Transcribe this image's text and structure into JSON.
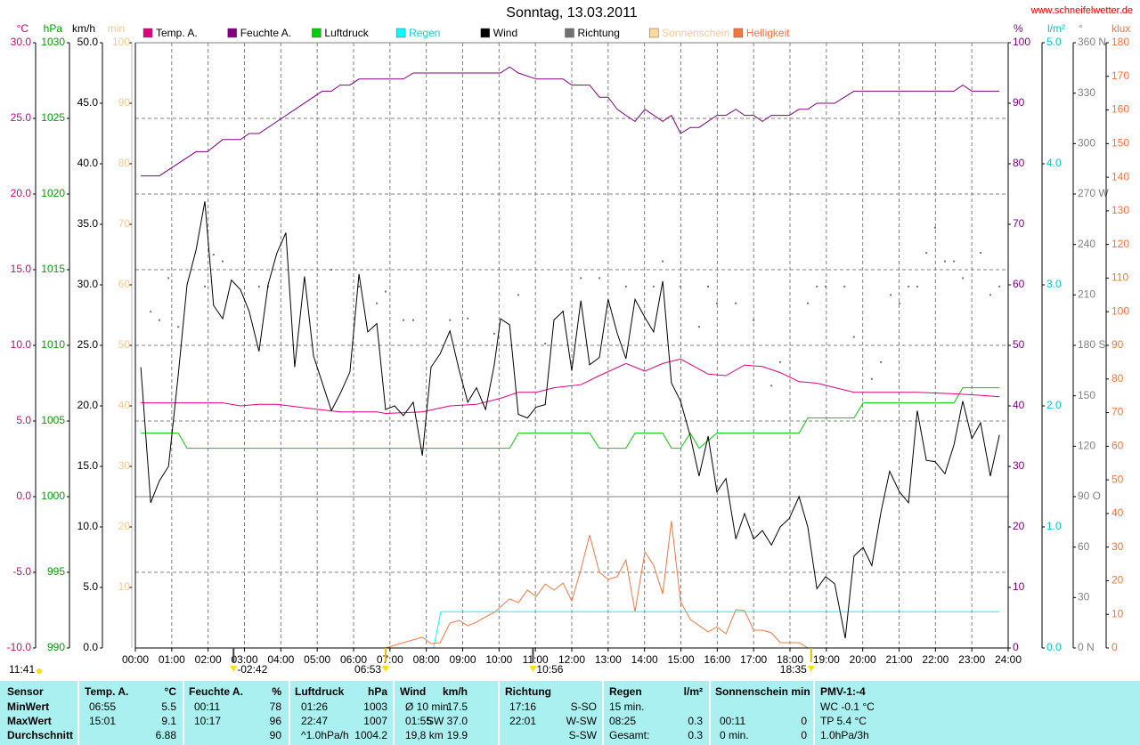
{
  "chart_data": {
    "type": "line",
    "title": "Sonntag, 13.03.2011",
    "source": "www.schneifelwetter.de",
    "xlim": [
      0,
      24
    ],
    "xticks": [
      {
        "value": 0,
        "label": "00:00"
      },
      {
        "value": 1,
        "label": "01:00"
      },
      {
        "value": 2,
        "label": "02:00"
      },
      {
        "value": 3,
        "label": "03:00"
      },
      {
        "value": 4,
        "label": "04:00"
      },
      {
        "value": 5,
        "label": "05:00"
      },
      {
        "value": 6,
        "label": "06:00"
      },
      {
        "value": 7,
        "label": "07:00"
      },
      {
        "value": 8,
        "label": "08:00"
      },
      {
        "value": 9,
        "label": "09:00"
      },
      {
        "value": 10,
        "label": "10:00"
      },
      {
        "value": 11,
        "label": "11:00"
      },
      {
        "value": 12,
        "label": "12:00"
      },
      {
        "value": 13,
        "label": "13:00"
      },
      {
        "value": 14,
        "label": "14:00"
      },
      {
        "value": 15,
        "label": "15:00"
      },
      {
        "value": 16,
        "label": "16:00"
      },
      {
        "value": 17,
        "label": "17:00"
      },
      {
        "value": 18,
        "label": "18:00"
      },
      {
        "value": 19,
        "label": "19:00"
      },
      {
        "value": 20,
        "label": "20:00"
      },
      {
        "value": 21,
        "label": "21:00"
      },
      {
        "value": 22,
        "label": "22:00"
      },
      {
        "value": 23,
        "label": "23:00"
      },
      {
        "value": 24,
        "label": "24:00"
      }
    ],
    "grid": true,
    "axes": [
      {
        "unit": "°C",
        "side": "left",
        "color": "#d4007a",
        "lim": [
          -10,
          30
        ],
        "ticks": [
          {
            "value": -10,
            "label": "-10.0"
          },
          {
            "value": -5,
            "label": "-5.0"
          },
          {
            "value": 0,
            "label": "0.0"
          },
          {
            "value": 5,
            "label": "5.0"
          },
          {
            "value": 10,
            "label": "10.0"
          },
          {
            "value": 15,
            "label": "15.0"
          },
          {
            "value": 20,
            "label": "20.0"
          },
          {
            "value": 25,
            "label": "25.0"
          },
          {
            "value": 30,
            "label": "30.0"
          }
        ]
      },
      {
        "unit": "hPa",
        "side": "left",
        "color": "#00a000",
        "lim": [
          990,
          1030
        ],
        "ticks": [
          990,
          995,
          1000,
          1005,
          1010,
          1015,
          1020,
          1025,
          1030
        ]
      },
      {
        "unit": "km/h",
        "side": "left",
        "color": "#000000",
        "lim": [
          0,
          50
        ],
        "ticks": [
          {
            "value": 0,
            "label": "0.0"
          },
          {
            "value": 5,
            "label": "5.0"
          },
          {
            "value": 10,
            "label": "10.0"
          },
          {
            "value": 15,
            "label": "15.0"
          },
          {
            "value": 20,
            "label": "20.0"
          },
          {
            "value": 25,
            "label": "25.0"
          },
          {
            "value": 30,
            "label": "30.0"
          },
          {
            "value": 35,
            "label": "35.0"
          },
          {
            "value": 40,
            "label": "40.0"
          },
          {
            "value": 45,
            "label": "45.0"
          },
          {
            "value": 50,
            "label": "50.0"
          }
        ]
      },
      {
        "unit": "min",
        "side": "left",
        "color": "#f5c890",
        "lim": [
          0,
          100
        ],
        "ticks": [
          10,
          20,
          30,
          40,
          50,
          60,
          70,
          80,
          90,
          100
        ]
      },
      {
        "unit": "%",
        "side": "right",
        "color": "#800080",
        "lim": [
          0,
          100
        ],
        "ticks": [
          0,
          10,
          20,
          30,
          40,
          50,
          60,
          70,
          80,
          90,
          100
        ]
      },
      {
        "unit": "l/m²",
        "side": "right",
        "color": "#00c8c8",
        "lim": [
          0,
          5
        ],
        "ticks": [
          {
            "value": 0,
            "label": "0.0"
          },
          {
            "value": 1,
            "label": "1.0"
          },
          {
            "value": 2,
            "label": "2.0"
          },
          {
            "value": 3,
            "label": "3.0"
          },
          {
            "value": 4,
            "label": "4.0"
          },
          {
            "value": 5,
            "label": "5.0"
          }
        ]
      },
      {
        "unit": "°",
        "side": "right",
        "color": "#808080",
        "lim": [
          0,
          360
        ],
        "ticks": [
          {
            "value": 0,
            "label": "0 N"
          },
          30,
          60,
          {
            "value": 90,
            "label": "90 O"
          },
          120,
          150,
          {
            "value": 180,
            "label": "180 S"
          },
          210,
          240,
          {
            "value": 270,
            "label": "270 W"
          },
          300,
          330,
          {
            "value": 360,
            "label": "360 N"
          }
        ]
      },
      {
        "unit": "klux",
        "side": "right",
        "color": "#ff7030",
        "lim": [
          0,
          180
        ],
        "ticks": [
          0,
          10,
          20,
          30,
          40,
          50,
          60,
          70,
          80,
          90,
          100,
          110,
          120,
          130,
          140,
          150,
          160,
          170,
          180
        ]
      }
    ],
    "series": [
      {
        "name": "Temp. A.",
        "color": "#e0007f",
        "label_color": "#000000",
        "axis": "°C",
        "style": "line",
        "x": [
          0.15,
          2.4,
          2.89,
          3.4,
          3.89,
          4.9,
          5.63,
          6.64,
          6.88,
          7.89,
          8.65,
          9.38,
          10.04,
          10.53,
          11.02,
          11.51,
          12.25,
          12.76,
          13.49,
          14.01,
          14.5,
          14.99,
          15.75,
          16.24,
          16.75,
          17.24,
          17.73,
          18.25,
          18.74,
          19.76,
          21.01,
          21.5,
          22.51,
          23.24,
          23.76
        ],
        "values": [
          6.2,
          6.2,
          6.0,
          6.1,
          6.1,
          5.8,
          5.6,
          5.6,
          5.5,
          5.6,
          6.0,
          6.1,
          6.5,
          6.9,
          6.9,
          7.2,
          7.4,
          8.0,
          8.8,
          8.3,
          8.8,
          9.1,
          8.1,
          8.0,
          8.7,
          8.6,
          8.2,
          7.6,
          7.5,
          6.9,
          6.9,
          6.9,
          6.8,
          6.7,
          6.6
        ]
      },
      {
        "name": "Feuchte A.",
        "color": "#800080",
        "label_color": "#000000",
        "axis": "%",
        "style": "line",
        "x": [
          0.15,
          0.66,
          1.67,
          1.98,
          2.4,
          2.89,
          3.13,
          3.4,
          5.14,
          5.39,
          5.63,
          5.9,
          6.15,
          7.37,
          7.64,
          10.04,
          10.29,
          10.53,
          11.02,
          11.76,
          12.0,
          12.49,
          12.76,
          13.0,
          13.25,
          13.49,
          13.74,
          14.01,
          14.5,
          14.74,
          14.99,
          15.26,
          15.5,
          15.99,
          16.24,
          16.51,
          16.75,
          17.0,
          17.24,
          17.49,
          17.98,
          18.25,
          18.49,
          18.74,
          19.23,
          19.76,
          22.51,
          22.75,
          23.0,
          23.76
        ],
        "values": [
          78,
          78,
          82,
          82,
          84,
          84,
          85,
          85,
          92,
          92,
          93,
          93,
          94,
          94,
          95,
          95,
          96,
          95,
          94,
          94,
          93,
          93,
          91,
          91,
          89,
          88,
          87,
          89,
          87,
          88,
          85,
          86,
          86,
          88,
          88,
          89,
          88,
          88,
          87,
          88,
          88,
          89,
          89,
          90,
          90,
          92,
          92,
          93,
          92,
          92
        ]
      },
      {
        "name": "Luftdruck",
        "color": "#00d000",
        "label_color": "#000000",
        "axis": "hPa",
        "style": "line",
        "x": [
          0.15,
          1.18,
          1.42,
          10.29,
          10.53,
          12.49,
          12.76,
          13.49,
          13.74,
          14.5,
          14.74,
          14.99,
          15.26,
          15.5,
          15.99,
          18.25,
          18.49,
          19.76,
          20.01,
          22.51,
          22.75,
          23.76
        ],
        "values": [
          1004.2,
          1004.2,
          1003.2,
          1003.2,
          1004.2,
          1004.2,
          1003.2,
          1003.2,
          1004.2,
          1004.2,
          1003.2,
          1003.2,
          1004.2,
          1003.2,
          1004.2,
          1004.2,
          1005.2,
          1005.2,
          1006.2,
          1006.2,
          1007.2,
          1007.2
        ]
      },
      {
        "name": "Regen",
        "color": "#00ffff",
        "label_color": "#00d8d8",
        "axis": "l/m²",
        "style": "line",
        "x": [
          8.2,
          8.4,
          23.76
        ],
        "values": [
          0.0,
          0.3,
          0.3
        ]
      },
      {
        "name": "Wind",
        "color": "#000000",
        "label_color": "#000000",
        "axis": "km/h",
        "style": "line",
        "x": [
          0.15,
          0.42,
          0.66,
          0.91,
          1.18,
          1.42,
          1.67,
          1.91,
          2.15,
          2.4,
          2.64,
          2.89,
          3.13,
          3.4,
          3.65,
          3.89,
          4.14,
          4.38,
          4.65,
          4.9,
          5.14,
          5.39,
          5.63,
          5.9,
          6.15,
          6.39,
          6.64,
          6.88,
          7.13,
          7.37,
          7.64,
          7.89,
          8.13,
          8.38,
          8.65,
          8.9,
          9.14,
          9.38,
          9.63,
          9.87,
          10.04,
          10.29,
          10.53,
          10.78,
          11.02,
          11.27,
          11.51,
          11.76,
          12.0,
          12.25,
          12.49,
          12.76,
          13.0,
          13.25,
          13.49,
          13.74,
          14.01,
          14.25,
          14.5,
          14.74,
          14.99,
          15.26,
          15.5,
          15.75,
          15.99,
          16.24,
          16.51,
          16.75,
          17.0,
          17.24,
          17.49,
          17.73,
          17.98,
          18.25,
          18.49,
          18.74,
          18.98,
          19.23,
          19.52,
          19.76,
          20.01,
          20.25,
          20.5,
          20.74,
          21.01,
          21.26,
          21.5,
          21.75,
          21.99,
          22.26,
          22.51,
          22.75,
          23.0,
          23.24,
          23.51,
          23.76
        ],
        "values": [
          23.2,
          12.0,
          13.8,
          15.0,
          22.6,
          30.0,
          32.9,
          36.9,
          28.3,
          27.2,
          30.4,
          29.6,
          27.8,
          24.5,
          30.0,
          32.6,
          34.3,
          23.2,
          30.7,
          24.1,
          21.9,
          19.6,
          21.0,
          22.8,
          30.9,
          26.1,
          26.8,
          19.7,
          20.0,
          19.2,
          20.3,
          15.9,
          23.2,
          24.3,
          26.2,
          23.0,
          20.3,
          21.5,
          19.7,
          23.4,
          27.2,
          26.7,
          19.3,
          19.0,
          19.9,
          20.1,
          27.1,
          27.8,
          22.9,
          28.7,
          23.4,
          24.0,
          28.8,
          26.0,
          23.9,
          28.8,
          27.3,
          26.1,
          30.3,
          21.9,
          20.4,
          17.5,
          14.2,
          17.5,
          12.9,
          14.0,
          9.0,
          11.1,
          9.0,
          9.7,
          8.5,
          10.0,
          10.7,
          12.5,
          10.0,
          4.9,
          5.9,
          5.3,
          0.8,
          7.6,
          8.3,
          6.8,
          11.2,
          14.6,
          12.9,
          12.0,
          19.6,
          15.5,
          15.4,
          14.4,
          16.8,
          20.4,
          17.3,
          18.6,
          14.2,
          17.6
        ]
      },
      {
        "name": "Richtung",
        "color": "#707070",
        "label_color": "#000000",
        "axis": "°",
        "style": "dots",
        "x": [
          0.42,
          0.66,
          0.91,
          1.18,
          1.91,
          2.15,
          2.4,
          3.4,
          3.65,
          5.39,
          6.15,
          6.64,
          6.88,
          7.37,
          7.64,
          8.65,
          9.14,
          9.87,
          10.53,
          11.27,
          11.76,
          12.25,
          12.76,
          13.49,
          14.25,
          14.5,
          14.99,
          15.5,
          15.75,
          15.99,
          16.51,
          17.0,
          17.49,
          17.73,
          18.49,
          18.74,
          18.98,
          19.5,
          19.76,
          20.25,
          20.5,
          20.77,
          21.01,
          21.26,
          21.5,
          21.75,
          21.99,
          22.26,
          22.51,
          22.75,
          23.24,
          23.51,
          23.76
        ],
        "values": [
          200,
          195,
          220,
          191,
          215,
          234,
          230,
          215,
          215,
          225,
          215,
          205,
          212,
          195,
          195,
          195,
          196,
          187,
          210,
          181,
          200,
          220,
          220,
          215,
          215,
          230,
          215,
          191,
          215,
          205,
          205,
          195,
          156,
          170,
          205,
          215,
          215,
          215,
          185,
          160,
          170,
          210,
          205,
          215,
          215,
          235,
          250,
          230,
          230,
          220,
          235,
          210,
          215
        ]
      },
      {
        "name": "Sonnenschein",
        "color": "#ffd8a0",
        "label_color": "#f5c890",
        "axis": "min",
        "style": "line",
        "x": [],
        "values": []
      },
      {
        "name": "Helligkeit",
        "color": "#f07840",
        "label_color": "#ff7030",
        "axis": "klux",
        "style": "line",
        "x": [
          6.88,
          7.37,
          7.89,
          8.13,
          8.38,
          8.65,
          8.9,
          9.14,
          9.38,
          9.63,
          9.87,
          10.29,
          10.53,
          10.78,
          11.02,
          11.27,
          11.51,
          11.76,
          12.0,
          12.25,
          12.49,
          12.76,
          13.0,
          13.25,
          13.49,
          13.74,
          14.01,
          14.25,
          14.5,
          14.74,
          14.99,
          15.26,
          15.75,
          15.99,
          16.24,
          16.51,
          16.75,
          17.0,
          17.24,
          17.49,
          17.73,
          18.25,
          18.49
        ],
        "values": [
          0,
          1.6,
          3.2,
          1.3,
          1.6,
          7.4,
          8.2,
          6.6,
          7.7,
          9.3,
          10.6,
          14.6,
          13.5,
          17.2,
          15.3,
          19.0,
          17.2,
          19.3,
          14.0,
          23.3,
          33.6,
          22.5,
          20.4,
          21.2,
          26.2,
          10.8,
          28.6,
          24.6,
          16.1,
          37.8,
          13.8,
          8.5,
          4.8,
          6.3,
          4.2,
          11.4,
          11.1,
          5.3,
          5.3,
          4.5,
          1.6,
          1.6,
          0
        ]
      }
    ],
    "day_length": "11:41",
    "annotations": [
      {
        "text": "-02:42",
        "x": 2.7
      },
      {
        "text": "06:53",
        "x": 6.883
      },
      {
        "text": "10:56",
        "x": 10.933
      },
      {
        "text": "18:35",
        "x": 18.583
      }
    ]
  },
  "stats_table": {
    "header": [
      "Sensor",
      "Temp. A.",
      "°C",
      "Feuchte A.",
      "%",
      "Luftdruck",
      "hPa",
      "Wind",
      "km/h",
      "Richtung",
      null,
      "Regen",
      "l/m²",
      "Sonnenschein min",
      null,
      "PMV-1:-4"
    ],
    "rows": [
      [
        "MinWert",
        "06:55",
        "5.5",
        "00:11",
        "78",
        "01:26",
        "1003",
        "Ø 10 min.",
        "17.5",
        "17:16",
        "S-SO",
        "15 min.",
        null,
        null,
        null,
        "WC -0.1 °C"
      ],
      [
        "MaxWert",
        "15:01",
        "9.1",
        "10:17",
        "96",
        "22:47",
        "1007",
        "01:55",
        "SW 37.0",
        "22:01",
        "W-SW",
        "08:25",
        "0.3",
        "00:11",
        "0",
        "TP 5.4 °C"
      ],
      [
        "Durchschnitt",
        null,
        "6.88",
        null,
        "90",
        "^1.0hPa/h",
        "1004.2",
        "19,8 km",
        "19.9",
        null,
        "S-SW",
        "Gesamt:",
        "0.3",
        "0 min.",
        "0",
        "1.0hPa/3h"
      ]
    ]
  }
}
